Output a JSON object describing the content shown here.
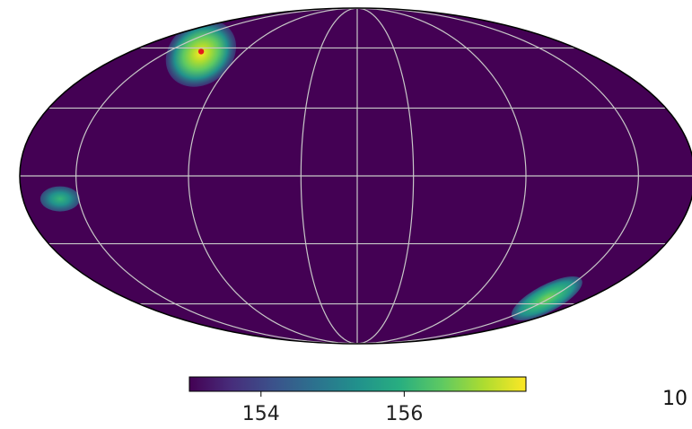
{
  "chart_data": {
    "type": "heatmap",
    "projection": "mollweide",
    "background_color": "#440154",
    "grid": true,
    "grid_color": "#c8c8c8",
    "graticule": {
      "meridians_deg": [
        -150,
        -90,
        -30,
        30,
        90,
        150
      ],
      "parallels_deg": [
        -60,
        -30,
        0,
        30,
        60
      ]
    },
    "colormap": "viridis",
    "colorbar": {
      "orientation": "horizontal",
      "placement": "bottom",
      "range": [
        153.0,
        157.7
      ],
      "ticks": [
        154,
        156
      ],
      "tick_labels": [
        "154",
        "156"
      ]
    },
    "hotspots": [
      {
        "lon": 122,
        "lat": 57,
        "peak": 157.6,
        "shape": "elongated"
      },
      {
        "lon": 160,
        "lat": -10,
        "peak": 154.5,
        "shape": "compact"
      },
      {
        "lon": -148,
        "lat": -57,
        "peak": 155.9,
        "shape": "elongated"
      }
    ],
    "marker": {
      "lon": 124,
      "lat": 58,
      "color": "#e41a1c"
    },
    "corner_label": "10"
  }
}
